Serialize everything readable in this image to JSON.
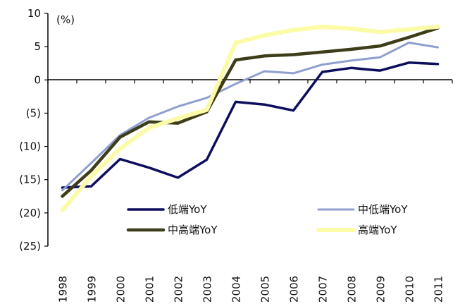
{
  "chart_data": {
    "type": "line",
    "title": "",
    "xlabel": "",
    "ylabel": "",
    "unit_label": "(%)",
    "categories": [
      "1998",
      "1999",
      "2000",
      "2001",
      "2002",
      "2003",
      "2004",
      "2005",
      "2006",
      "2007",
      "2008",
      "2009",
      "2010",
      "2011"
    ],
    "ylim": [
      -25,
      10
    ],
    "yticks": [
      10,
      5,
      0,
      -5,
      -10,
      -15,
      -20,
      -25
    ],
    "ytick_labels": [
      "10",
      "5",
      "0",
      "(5)",
      "(10)",
      "(15)",
      "(20)",
      "(25)"
    ],
    "grid": false,
    "legend_placement": "bottom-center",
    "series": [
      {
        "name": "低端YoY",
        "color": "#0d0d5e",
        "values": [
          -16.2,
          -16.0,
          -11.9,
          -13.2,
          -14.7,
          -12.0,
          -3.3,
          -3.7,
          -4.6,
          1.2,
          1.8,
          1.4,
          2.6,
          2.4
        ]
      },
      {
        "name": "中低端YoY",
        "color": "#8fa0cf",
        "values": [
          -16.6,
          -12.5,
          -8.3,
          -5.7,
          -4.0,
          -2.7,
          -0.6,
          1.3,
          1.0,
          2.3,
          2.9,
          3.4,
          5.6,
          4.9
        ]
      },
      {
        "name": "中高端YoY",
        "color": "#3d3d1a",
        "values": [
          -17.5,
          -13.6,
          -8.6,
          -6.3,
          -6.5,
          -4.8,
          3.0,
          3.6,
          3.8,
          4.2,
          4.6,
          5.1,
          6.4,
          7.8
        ]
      },
      {
        "name": "高端YoY",
        "color": "#fbfba8",
        "values": [
          -19.6,
          -14.5,
          -10.3,
          -7.2,
          -5.8,
          -4.5,
          5.6,
          6.7,
          7.5,
          8.0,
          7.7,
          7.2,
          7.6,
          8.0
        ]
      }
    ]
  }
}
